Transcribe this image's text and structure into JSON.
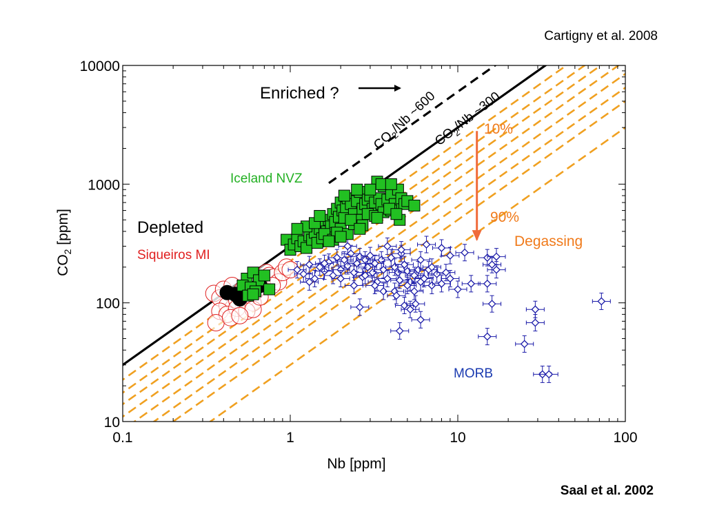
{
  "references": {
    "top": "Cartigny et al. 2008",
    "bottom": "Saal et al. 2002"
  },
  "chart_data": {
    "type": "scatter",
    "xlabel": "Nb [ppm]",
    "ylabel_main": "CO",
    "ylabel_sub": "2",
    "ylabel_tail": " [ppm]",
    "xscale": "log",
    "yscale": "log",
    "xlim": [
      0.1,
      100
    ],
    "ylim": [
      10,
      10000
    ],
    "xticks": [
      {
        "value": 0.1,
        "label": "0.1"
      },
      {
        "value": 1,
        "label": "1"
      },
      {
        "value": 10,
        "label": "10"
      },
      {
        "value": 100,
        "label": "100"
      }
    ],
    "yticks": [
      {
        "value": 10,
        "label": "10"
      },
      {
        "value": 100,
        "label": "100"
      },
      {
        "value": 1000,
        "label": "1000"
      },
      {
        "value": 10000,
        "label": "10000"
      }
    ],
    "grid": false,
    "colors": {
      "iceland": "#22c022",
      "siqueiros": "#e02020",
      "morb": "#1a1aa8",
      "degassing": "#f0a020",
      "arrow": "#f06a3a",
      "label_orange": "#f07a1a"
    },
    "reference_lines": [
      {
        "label_main": "CO",
        "label_sub": "2",
        "label_tail": "/Nb ~300",
        "ratio": 300,
        "style": "solid"
      },
      {
        "label_main": "CO",
        "label_sub": "2",
        "label_tail": "/Nb ~600",
        "ratio": 600,
        "style": "dashed",
        "x_start": 1.7
      }
    ],
    "degassing_ratios": [
      225,
      175,
      140,
      110,
      85,
      65,
      50,
      30
    ],
    "annotations": {
      "enriched": "Enriched ?",
      "depleted": "Depleted",
      "degassing": "Degassing",
      "pct10": "10%",
      "pct90": "90%"
    },
    "degassing_arrow": {
      "x": 13,
      "y_from": 2800,
      "y_to": 340
    },
    "series": [
      {
        "name": "Iceland NVZ",
        "marker": "filled-square",
        "points": [
          [
            0.55,
            160
          ],
          [
            0.6,
            180
          ],
          [
            0.65,
            155
          ],
          [
            0.7,
            170
          ],
          [
            0.52,
            140
          ],
          [
            0.58,
            135
          ],
          [
            0.62,
            125
          ],
          [
            0.56,
            115
          ],
          [
            0.75,
            130
          ],
          [
            0.6,
            118
          ],
          [
            0.95,
            340
          ],
          [
            1.0,
            280
          ],
          [
            1.05,
            310
          ],
          [
            1.1,
            350
          ],
          [
            1.15,
            300
          ],
          [
            1.2,
            330
          ],
          [
            1.25,
            290
          ],
          [
            1.3,
            370
          ],
          [
            1.35,
            340
          ],
          [
            1.4,
            390
          ],
          [
            1.45,
            320
          ],
          [
            1.5,
            420
          ],
          [
            1.55,
            350
          ],
          [
            1.6,
            460
          ],
          [
            1.65,
            400
          ],
          [
            1.7,
            500
          ],
          [
            1.75,
            440
          ],
          [
            1.8,
            560
          ],
          [
            1.85,
            480
          ],
          [
            1.9,
            620
          ],
          [
            1.95,
            530
          ],
          [
            2.0,
            700
          ],
          [
            2.05,
            600
          ],
          [
            2.1,
            520
          ],
          [
            2.15,
            640
          ],
          [
            2.2,
            760
          ],
          [
            2.3,
            680
          ],
          [
            2.4,
            560
          ],
          [
            2.5,
            720
          ],
          [
            2.6,
            860
          ],
          [
            2.7,
            620
          ],
          [
            2.8,
            680
          ],
          [
            2.9,
            740
          ],
          [
            3.0,
            800
          ],
          [
            3.1,
            620
          ],
          [
            3.2,
            700
          ],
          [
            3.3,
            1050
          ],
          [
            3.4,
            760
          ],
          [
            3.5,
            680
          ],
          [
            3.6,
            960
          ],
          [
            3.8,
            740
          ],
          [
            4.0,
            820
          ],
          [
            4.2,
            680
          ],
          [
            4.4,
            900
          ],
          [
            4.6,
            760
          ],
          [
            4.8,
            680
          ],
          [
            5.0,
            720
          ],
          [
            5.5,
            660
          ],
          [
            1.25,
            440
          ],
          [
            1.4,
            470
          ],
          [
            1.6,
            380
          ],
          [
            1.8,
            340
          ],
          [
            2.0,
            420
          ],
          [
            2.2,
            380
          ],
          [
            2.4,
            460
          ],
          [
            2.6,
            500
          ],
          [
            2.9,
            560
          ],
          [
            3.2,
            540
          ],
          [
            3.6,
            580
          ],
          [
            4.0,
            600
          ],
          [
            4.5,
            500
          ],
          [
            1.1,
            420
          ],
          [
            1.5,
            540
          ],
          [
            2.1,
            800
          ],
          [
            2.5,
            900
          ],
          [
            3.0,
            900
          ],
          [
            3.5,
            1000
          ],
          [
            4.0,
            1000
          ],
          [
            1.9,
            390
          ],
          [
            2.3,
            500
          ],
          [
            2.7,
            450
          ],
          [
            3.3,
            520
          ],
          [
            3.9,
            620
          ],
          [
            4.3,
            560
          ],
          [
            1.7,
            330
          ],
          [
            2.0,
            360
          ],
          [
            2.6,
            420
          ]
        ]
      },
      {
        "name": "Siqueiros MI",
        "marker": "open-circle",
        "points": [
          [
            0.35,
            120
          ],
          [
            0.38,
            110
          ],
          [
            0.4,
            130
          ],
          [
            0.42,
            95
          ],
          [
            0.45,
            140
          ],
          [
            0.48,
            105
          ],
          [
            0.5,
            120
          ],
          [
            0.52,
            130
          ],
          [
            0.55,
            110
          ],
          [
            0.58,
            140
          ],
          [
            0.6,
            100
          ],
          [
            0.62,
            125
          ],
          [
            0.65,
            135
          ],
          [
            0.68,
            160
          ],
          [
            0.7,
            145
          ],
          [
            0.72,
            180
          ],
          [
            0.75,
            170
          ],
          [
            0.8,
            165
          ],
          [
            0.85,
            150
          ],
          [
            0.9,
            180
          ],
          [
            0.95,
            200
          ],
          [
            1.0,
            190
          ],
          [
            0.38,
            85
          ],
          [
            0.42,
            80
          ],
          [
            0.48,
            90
          ],
          [
            0.55,
            85
          ],
          [
            0.6,
            88
          ],
          [
            0.36,
            68
          ],
          [
            0.44,
            75
          ],
          [
            0.5,
            78
          ],
          [
            0.66,
            112
          ],
          [
            0.78,
            140
          ]
        ]
      },
      {
        "name": "Siqueiros MI (filled)",
        "marker": "filled-circle",
        "points": [
          [
            0.42,
            122
          ],
          [
            0.47,
            118
          ],
          [
            0.5,
            108
          ],
          [
            0.6,
            132
          ],
          [
            0.66,
            140
          ]
        ]
      },
      {
        "name": "MORB",
        "marker": "diamond-errorbar",
        "points": [
          [
            1.1,
            190
          ],
          [
            1.2,
            175
          ],
          [
            1.3,
            210
          ],
          [
            1.4,
            160
          ],
          [
            1.5,
            200
          ],
          [
            1.6,
            185
          ],
          [
            1.7,
            220
          ],
          [
            1.8,
            170
          ],
          [
            1.9,
            240
          ],
          [
            2.0,
            190
          ],
          [
            2.1,
            230
          ],
          [
            2.2,
            205
          ],
          [
            2.3,
            260
          ],
          [
            2.4,
            180
          ],
          [
            2.5,
            215
          ],
          [
            2.6,
            245
          ],
          [
            2.7,
            165
          ],
          [
            2.8,
            230
          ],
          [
            2.9,
            200
          ],
          [
            3.0,
            250
          ],
          [
            3.1,
            180
          ],
          [
            3.2,
            215
          ],
          [
            3.3,
            150
          ],
          [
            3.5,
            230
          ],
          [
            3.6,
            190
          ],
          [
            3.8,
            160
          ],
          [
            4.0,
            240
          ],
          [
            4.2,
            200
          ],
          [
            4.4,
            180
          ],
          [
            4.6,
            260
          ],
          [
            4.8,
            210
          ],
          [
            5.0,
            185
          ],
          [
            5.2,
            150
          ],
          [
            5.5,
            170
          ],
          [
            5.8,
            190
          ],
          [
            6.0,
            230
          ],
          [
            6.3,
            160
          ],
          [
            6.7,
            190
          ],
          [
            7.0,
            200
          ],
          [
            7.5,
            175
          ],
          [
            8.0,
            290
          ],
          [
            8.5,
            180
          ],
          [
            9.0,
            160
          ],
          [
            10,
            130
          ],
          [
            11,
            265
          ],
          [
            12,
            145
          ],
          [
            1.3,
            150
          ],
          [
            1.6,
            215
          ],
          [
            2.0,
            160
          ],
          [
            2.4,
            140
          ],
          [
            2.8,
            170
          ],
          [
            3.2,
            140
          ],
          [
            3.6,
            125
          ],
          [
            4.2,
            125
          ],
          [
            4.5,
            155
          ],
          [
            5.0,
            140
          ],
          [
            5.5,
            125
          ],
          [
            6.0,
            150
          ],
          [
            7.0,
            140
          ],
          [
            8.0,
            145
          ],
          [
            2.6,
            92
          ],
          [
            4.3,
            115
          ],
          [
            4.8,
            95
          ],
          [
            5.2,
            88
          ],
          [
            5.6,
            98
          ],
          [
            6.0,
            72
          ],
          [
            4.5,
            58
          ],
          [
            16,
            98
          ],
          [
            15,
            145
          ],
          [
            15,
            52
          ],
          [
            16,
            210
          ],
          [
            17,
            190
          ],
          [
            15,
            240
          ],
          [
            17,
            245
          ],
          [
            25,
            45
          ],
          [
            29,
            88
          ],
          [
            29,
            68
          ],
          [
            72,
            103
          ],
          [
            32,
            25
          ],
          [
            35,
            25
          ],
          [
            2.2,
            300
          ],
          [
            3.8,
            300
          ],
          [
            4.6,
            280
          ],
          [
            6.5,
            310
          ],
          [
            9.0,
            250
          ]
        ]
      }
    ]
  }
}
